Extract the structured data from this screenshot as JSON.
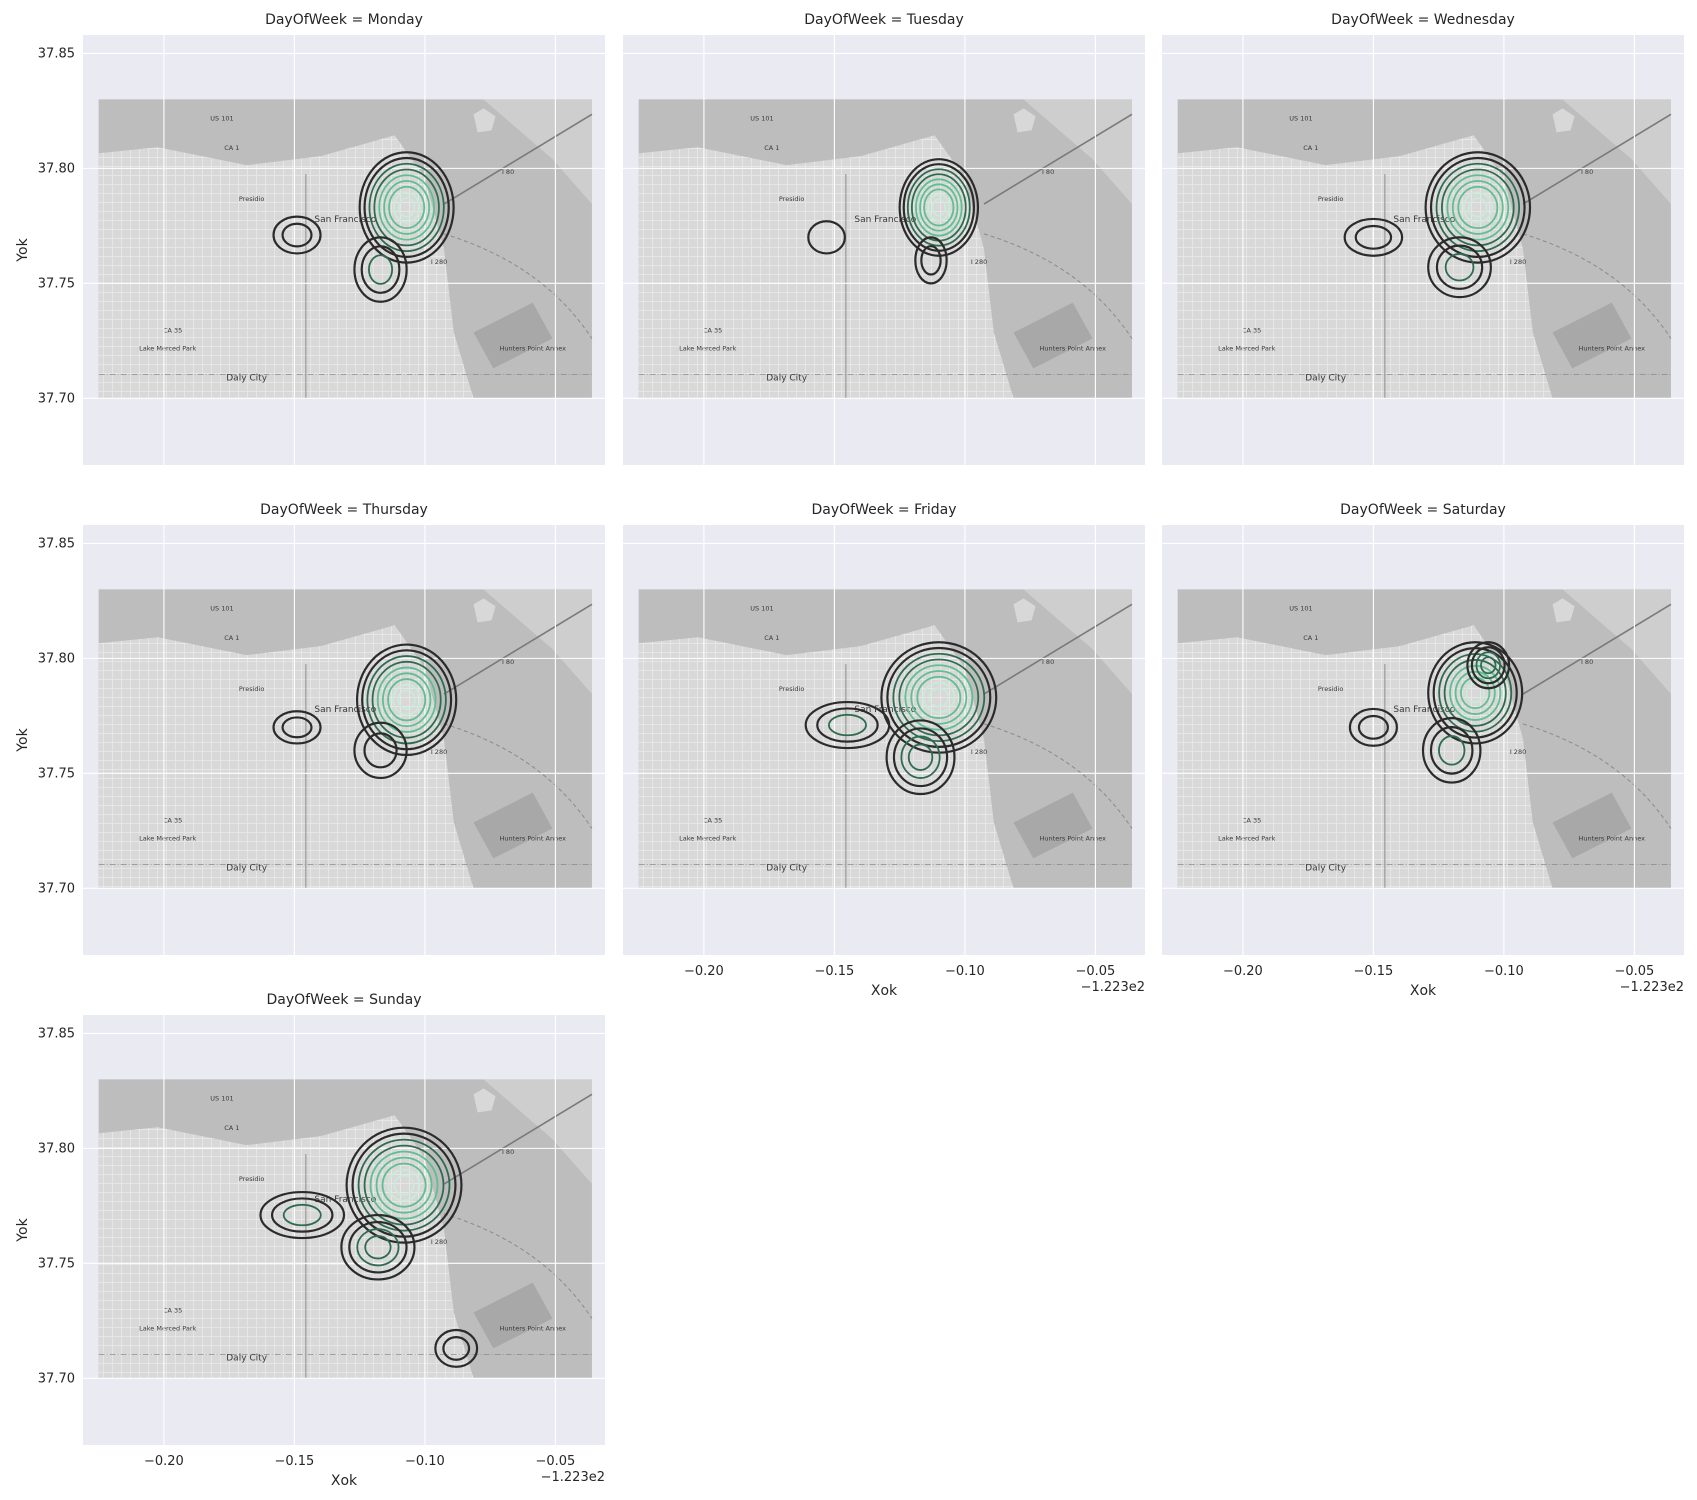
{
  "chart_data": [
    {
      "type": "contour",
      "title": "DayOfWeek = Monday",
      "xlabel": "",
      "ylabel": "Yok",
      "xlim": [
        -0.231,
        -0.031
      ],
      "ylim": [
        37.671,
        37.858
      ],
      "x_offset_label": "",
      "xticks": [
        -0.2,
        -0.15,
        -0.1,
        -0.05
      ],
      "xticklabels": [],
      "yticks": [
        37.7,
        37.75,
        37.8,
        37.85
      ],
      "yticklabels": [
        "37.70",
        "37.75",
        "37.80",
        "37.85"
      ],
      "grid": true,
      "basemap_extent": {
        "x": [
          -0.225,
          -0.036
        ],
        "y": [
          37.7,
          37.83
        ]
      },
      "map_labels": [
        "San Francisco",
        "Daly City",
        "Presidio",
        "US 101",
        "CA 1",
        "I 80",
        "I 280",
        "CA 35",
        "Lake Merced Park",
        "Hunters Point Annex"
      ],
      "density_peaks": [
        {
          "x": -0.107,
          "y": 37.783,
          "levels": 9,
          "rx": 0.018,
          "ry": 0.024
        },
        {
          "x": -0.149,
          "y": 37.771,
          "levels": 2,
          "rx": 0.009,
          "ry": 0.008
        },
        {
          "x": -0.117,
          "y": 37.756,
          "levels": 3,
          "rx": 0.01,
          "ry": 0.014
        }
      ]
    },
    {
      "type": "contour",
      "title": "DayOfWeek = Tuesday",
      "xlabel": "",
      "ylabel": "",
      "xlim": [
        -0.231,
        -0.031
      ],
      "ylim": [
        37.671,
        37.858
      ],
      "x_offset_label": "",
      "xticks": [
        -0.2,
        -0.15,
        -0.1,
        -0.05
      ],
      "xticklabels": [],
      "yticks": [
        37.7,
        37.75,
        37.8,
        37.85
      ],
      "yticklabels": [],
      "grid": true,
      "basemap_extent": {
        "x": [
          -0.225,
          -0.036
        ],
        "y": [
          37.7,
          37.83
        ]
      },
      "map_labels": [
        "San Francisco",
        "Daly City",
        "Presidio",
        "US 101",
        "CA 1",
        "I 80",
        "I 280",
        "CA 35",
        "Lake Merced Park",
        "Hunters Point Annex"
      ],
      "density_peaks": [
        {
          "x": -0.11,
          "y": 37.783,
          "levels": 9,
          "rx": 0.015,
          "ry": 0.021
        },
        {
          "x": -0.153,
          "y": 37.77,
          "levels": 1,
          "rx": 0.007,
          "ry": 0.007
        },
        {
          "x": -0.113,
          "y": 37.76,
          "levels": 2,
          "rx": 0.006,
          "ry": 0.01
        }
      ]
    },
    {
      "type": "contour",
      "title": "DayOfWeek = Wednesday",
      "xlabel": "",
      "ylabel": "",
      "xlim": [
        -0.231,
        -0.031
      ],
      "ylim": [
        37.671,
        37.858
      ],
      "x_offset_label": "",
      "xticks": [
        -0.2,
        -0.15,
        -0.1,
        -0.05
      ],
      "xticklabels": [],
      "yticks": [
        37.7,
        37.75,
        37.8,
        37.85
      ],
      "yticklabels": [],
      "grid": true,
      "basemap_extent": {
        "x": [
          -0.225,
          -0.036
        ],
        "y": [
          37.7,
          37.83
        ]
      },
      "map_labels": [
        "San Francisco",
        "Daly City",
        "Presidio",
        "US 101",
        "CA 1",
        "I 80",
        "I 280",
        "CA 35",
        "Lake Merced Park",
        "Hunters Point Annex"
      ],
      "density_peaks": [
        {
          "x": -0.11,
          "y": 37.783,
          "levels": 9,
          "rx": 0.02,
          "ry": 0.024
        },
        {
          "x": -0.15,
          "y": 37.77,
          "levels": 2,
          "rx": 0.011,
          "ry": 0.008
        },
        {
          "x": -0.117,
          "y": 37.757,
          "levels": 3,
          "rx": 0.012,
          "ry": 0.013
        }
      ]
    },
    {
      "type": "contour",
      "title": "DayOfWeek = Thursday",
      "xlabel": "",
      "ylabel": "Yok",
      "xlim": [
        -0.231,
        -0.031
      ],
      "ylim": [
        37.671,
        37.858
      ],
      "x_offset_label": "",
      "xticks": [
        -0.2,
        -0.15,
        -0.1,
        -0.05
      ],
      "xticklabels": [],
      "yticks": [
        37.7,
        37.75,
        37.8,
        37.85
      ],
      "yticklabels": [
        "37.70",
        "37.75",
        "37.80",
        "37.85"
      ],
      "grid": true,
      "basemap_extent": {
        "x": [
          -0.225,
          -0.036
        ],
        "y": [
          37.7,
          37.83
        ]
      },
      "map_labels": [
        "San Francisco",
        "Daly City",
        "Presidio",
        "US 101",
        "CA 1",
        "I 80",
        "I 280",
        "CA 35",
        "Lake Merced Park",
        "Hunters Point Annex"
      ],
      "density_peaks": [
        {
          "x": -0.107,
          "y": 37.782,
          "levels": 9,
          "rx": 0.019,
          "ry": 0.024
        },
        {
          "x": -0.149,
          "y": 37.77,
          "levels": 2,
          "rx": 0.009,
          "ry": 0.007
        },
        {
          "x": -0.117,
          "y": 37.76,
          "levels": 2,
          "rx": 0.01,
          "ry": 0.012
        }
      ]
    },
    {
      "type": "contour",
      "title": "DayOfWeek = Friday",
      "xlabel": "Xok",
      "ylabel": "",
      "xlim": [
        -0.231,
        -0.031
      ],
      "ylim": [
        37.671,
        37.858
      ],
      "x_offset_label": "−1.223e2",
      "xticks": [
        -0.2,
        -0.15,
        -0.1,
        -0.05
      ],
      "xticklabels": [
        "−0.20",
        "−0.15",
        "−0.10",
        "−0.05"
      ],
      "yticks": [
        37.7,
        37.75,
        37.8,
        37.85
      ],
      "yticklabels": [],
      "grid": true,
      "basemap_extent": {
        "x": [
          -0.225,
          -0.036
        ],
        "y": [
          37.7,
          37.83
        ]
      },
      "map_labels": [
        "San Francisco",
        "Daly City",
        "Presidio",
        "US 101",
        "CA 1",
        "I 80",
        "I 280",
        "CA 35",
        "Lake Merced Park",
        "Hunters Point Annex"
      ],
      "density_peaks": [
        {
          "x": -0.11,
          "y": 37.783,
          "levels": 9,
          "rx": 0.022,
          "ry": 0.024
        },
        {
          "x": -0.145,
          "y": 37.771,
          "levels": 3,
          "rx": 0.016,
          "ry": 0.01
        },
        {
          "x": -0.117,
          "y": 37.757,
          "levels": 4,
          "rx": 0.013,
          "ry": 0.016
        }
      ]
    },
    {
      "type": "contour",
      "title": "DayOfWeek = Saturday",
      "xlabel": "Xok",
      "ylabel": "",
      "xlim": [
        -0.231,
        -0.031
      ],
      "ylim": [
        37.671,
        37.858
      ],
      "x_offset_label": "−1.223e2",
      "xticks": [
        -0.2,
        -0.15,
        -0.1,
        -0.05
      ],
      "xticklabels": [
        "−0.20",
        "−0.15",
        "−0.10",
        "−0.05"
      ],
      "yticks": [
        37.7,
        37.75,
        37.8,
        37.85
      ],
      "yticklabels": [],
      "grid": true,
      "basemap_extent": {
        "x": [
          -0.225,
          -0.036
        ],
        "y": [
          37.7,
          37.83
        ]
      },
      "map_labels": [
        "San Francisco",
        "Daly City",
        "Presidio",
        "US 101",
        "CA 1",
        "I 80",
        "I 280",
        "CA 35",
        "Lake Merced Park",
        "Hunters Point Annex"
      ],
      "density_peaks": [
        {
          "x": -0.111,
          "y": 37.785,
          "levels": 8,
          "rx": 0.018,
          "ry": 0.022
        },
        {
          "x": -0.106,
          "y": 37.797,
          "levels": 4,
          "rx": 0.008,
          "ry": 0.01
        },
        {
          "x": -0.15,
          "y": 37.77,
          "levels": 2,
          "rx": 0.009,
          "ry": 0.008
        },
        {
          "x": -0.12,
          "y": 37.76,
          "levels": 3,
          "rx": 0.011,
          "ry": 0.014
        }
      ]
    },
    {
      "type": "contour",
      "title": "DayOfWeek = Sunday",
      "xlabel": "Xok",
      "ylabel": "Yok",
      "xlim": [
        -0.231,
        -0.031
      ],
      "ylim": [
        37.671,
        37.858
      ],
      "x_offset_label": "−1.223e2",
      "xticks": [
        -0.2,
        -0.15,
        -0.1,
        -0.05
      ],
      "xticklabels": [
        "−0.20",
        "−0.15",
        "−0.10",
        "−0.05"
      ],
      "yticks": [
        37.7,
        37.75,
        37.8,
        37.85
      ],
      "yticklabels": [
        "37.70",
        "37.75",
        "37.80",
        "37.85"
      ],
      "grid": true,
      "basemap_extent": {
        "x": [
          -0.225,
          -0.036
        ],
        "y": [
          37.7,
          37.83
        ]
      },
      "map_labels": [
        "San Francisco",
        "Daly City",
        "Presidio",
        "US 101",
        "CA 1",
        "I 80",
        "I 280",
        "CA 35",
        "Lake Merced Park",
        "Hunters Point Annex"
      ],
      "density_peaks": [
        {
          "x": -0.108,
          "y": 37.784,
          "levels": 9,
          "rx": 0.022,
          "ry": 0.025
        },
        {
          "x": -0.147,
          "y": 37.771,
          "levels": 3,
          "rx": 0.016,
          "ry": 0.01
        },
        {
          "x": -0.118,
          "y": 37.757,
          "levels": 4,
          "rx": 0.014,
          "ry": 0.014
        },
        {
          "x": -0.088,
          "y": 37.713,
          "levels": 2,
          "rx": 0.008,
          "ry": 0.008
        }
      ]
    }
  ],
  "colors": {
    "axes_bg": "#eaeaf2",
    "grid": "#ffffff",
    "map_land": "#d8d8d8",
    "map_water": "#bdbdbd",
    "map_street": "#f2f2f2",
    "contour_outer": "#2b2b2b",
    "contour_mid": "#2f6b4f",
    "contour_inner": "#5fbf8e",
    "contour_core": "#c9ecd9"
  }
}
